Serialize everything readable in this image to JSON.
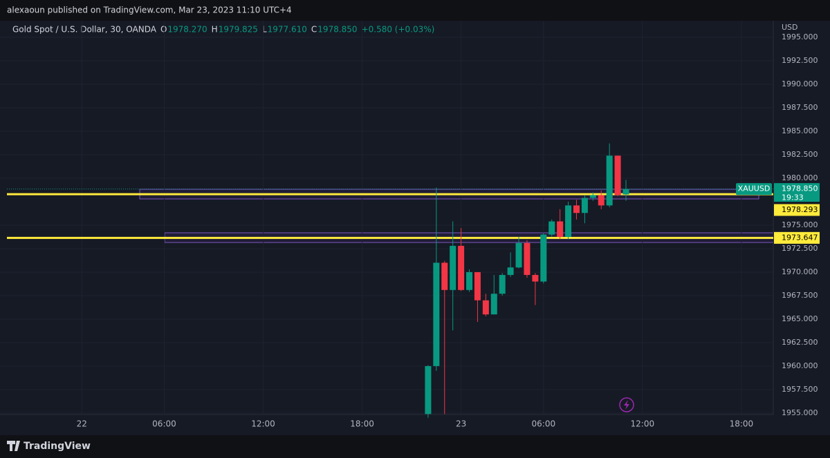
{
  "header": {
    "published": "alexaoun published on TradingView.com, Mar 23, 2023 11:10 UTC+4"
  },
  "footer": {
    "brand": "TradingView"
  },
  "chart_data": {
    "type": "candlestick",
    "title": "Gold Spot / U.S. Dollar, 30, OANDA",
    "legend_values": [
      {
        "key": "O",
        "value": "1978.270"
      },
      {
        "key": "H",
        "value": "1979.825"
      },
      {
        "key": "L",
        "value": "1977.610"
      },
      {
        "key": "C",
        "value": "1978.850"
      }
    ],
    "change": "+0.580 (+0.03%)",
    "y_unit": "USD",
    "categories": [
      null,
      null,
      null,
      null,
      null,
      null,
      null,
      null,
      null,
      "22",
      null,
      null,
      null,
      null,
      null,
      null,
      null,
      null,
      null,
      "06:00",
      null,
      null,
      null,
      null,
      null,
      null,
      null,
      null,
      null,
      null,
      null,
      "12:00",
      null,
      null,
      null,
      null,
      null,
      null,
      null,
      null,
      null,
      null,
      null,
      "18:00",
      null,
      null,
      null,
      null,
      null,
      null,
      null,
      null,
      null,
      null,
      null,
      "23",
      null,
      null,
      null,
      null,
      null,
      null,
      null,
      null,
      null,
      "06:00",
      null,
      null,
      null,
      null,
      null,
      null,
      null,
      null,
      null,
      null,
      null,
      "12:00",
      null,
      null,
      null,
      null,
      null,
      null,
      null,
      null,
      null,
      null,
      null,
      "18:00",
      null,
      null,
      null
    ],
    "open": [
      null,
      null,
      null,
      null,
      null,
      null,
      null,
      null,
      null,
      null,
      null,
      null,
      null,
      null,
      null,
      null,
      null,
      null,
      null,
      null,
      null,
      null,
      null,
      null,
      null,
      null,
      null,
      null,
      null,
      null,
      null,
      null,
      null,
      null,
      null,
      null,
      null,
      null,
      null,
      null,
      null,
      null,
      null,
      null,
      null,
      null,
      null,
      null,
      null,
      null,
      null,
      1954.9,
      1960.0,
      1971.0,
      1968.1,
      1972.8,
      1968.1,
      1970.0,
      1967.0,
      1965.5,
      1967.7,
      1969.7,
      1970.5,
      1973.1,
      1969.7,
      1969.0,
      1974.0,
      1975.4,
      1973.75,
      1977.1,
      1976.3,
      1977.9,
      1978.2,
      1977.1,
      1982.4,
      1978.27,
      null,
      null,
      null,
      null,
      null,
      null,
      null,
      null,
      null,
      null,
      null,
      null,
      null,
      null,
      null,
      null,
      null
    ],
    "high": [
      null,
      null,
      null,
      null,
      null,
      null,
      null,
      null,
      null,
      null,
      null,
      null,
      null,
      null,
      null,
      null,
      null,
      null,
      null,
      null,
      null,
      null,
      null,
      null,
      null,
      null,
      null,
      null,
      null,
      null,
      null,
      null,
      null,
      null,
      null,
      null,
      null,
      null,
      null,
      null,
      null,
      null,
      null,
      null,
      null,
      null,
      null,
      null,
      null,
      null,
      null,
      1960.1,
      1979.0,
      1971.2,
      1975.4,
      1974.7,
      1970.3,
      1970.0,
      1967.7,
      1969.7,
      1969.9,
      1972.1,
      1973.75,
      1973.4,
      1969.9,
      1974.2,
      1975.6,
      1976.7,
      1977.5,
      1977.7,
      1978.2,
      1978.5,
      1978.7,
      1983.7,
      1982.4,
      1979.825,
      null,
      null,
      null,
      null,
      null,
      null,
      null,
      null,
      null,
      null,
      null,
      null,
      null,
      null,
      null,
      null,
      null
    ],
    "low": [
      null,
      null,
      null,
      null,
      null,
      null,
      null,
      null,
      null,
      null,
      null,
      null,
      null,
      null,
      null,
      null,
      null,
      null,
      null,
      null,
      null,
      null,
      null,
      null,
      null,
      null,
      null,
      null,
      null,
      null,
      null,
      null,
      null,
      null,
      null,
      null,
      null,
      null,
      null,
      null,
      null,
      null,
      null,
      null,
      null,
      null,
      null,
      null,
      null,
      null,
      null,
      1954.5,
      1959.5,
      1954.9,
      1963.8,
      1968.0,
      1967.9,
      1964.7,
      1965.3,
      1965.5,
      1967.5,
      1969.5,
      1970.4,
      1969.4,
      1966.5,
      1968.8,
      1973.8,
      1973.5,
      1973.5,
      1975.6,
      1975.2,
      1977.6,
      1976.7,
      1976.9,
      1978.1,
      1977.61,
      null,
      null,
      null,
      null,
      null,
      null,
      null,
      null,
      null,
      null,
      null,
      null,
      null,
      null,
      null,
      null,
      null
    ],
    "close": [
      null,
      null,
      null,
      null,
      null,
      null,
      null,
      null,
      null,
      null,
      null,
      null,
      null,
      null,
      null,
      null,
      null,
      null,
      null,
      null,
      null,
      null,
      null,
      null,
      null,
      null,
      null,
      null,
      null,
      null,
      null,
      null,
      null,
      null,
      null,
      null,
      null,
      null,
      null,
      null,
      null,
      null,
      null,
      null,
      null,
      null,
      null,
      null,
      null,
      null,
      null,
      1960.0,
      1971.0,
      1968.1,
      1972.8,
      1968.1,
      1970.0,
      1967.0,
      1965.5,
      1967.7,
      1969.7,
      1970.5,
      1973.1,
      1969.7,
      1969.0,
      1974.0,
      1975.4,
      1973.75,
      1977.1,
      1976.3,
      1977.9,
      1978.2,
      1977.1,
      1982.4,
      1978.2,
      1978.85,
      null,
      null,
      null,
      null,
      null,
      null,
      null,
      null,
      null,
      null,
      null,
      null,
      null,
      null,
      null,
      null,
      null
    ],
    "up_color": "#089981",
    "down_color": "#f23645",
    "ylim": [
      1954.85,
      1996.76
    ],
    "yticks": [
      {
        "value": 1955,
        "label": "1955.000"
      },
      {
        "value": 1957.5,
        "label": "1957.500"
      },
      {
        "value": 1960,
        "label": "1960.000"
      },
      {
        "value": 1962.5,
        "label": "1962.500"
      },
      {
        "value": 1965,
        "label": "1965.000"
      },
      {
        "value": 1967.5,
        "label": "1967.500"
      },
      {
        "value": 1970,
        "label": "1970.000"
      },
      {
        "value": 1972.5,
        "label": "1972.500"
      },
      {
        "value": 1975,
        "label": "1975.000"
      },
      {
        "value": 1980,
        "label": "1980.000"
      },
      {
        "value": 1982.5,
        "label": "1982.500"
      },
      {
        "value": 1985,
        "label": "1985.000"
      },
      {
        "value": 1987.5,
        "label": "1987.500"
      },
      {
        "value": 1990,
        "label": "1990.000"
      },
      {
        "value": 1992.5,
        "label": "1992.500"
      },
      {
        "value": 1995,
        "label": "1995.000"
      }
    ],
    "grid": true,
    "levels": [
      1978.293,
      1973.647
    ],
    "level_color": "#ffeb3b",
    "last_price": {
      "symbol": "XAUUSD",
      "label": "1978.850",
      "countdown": "19:33"
    }
  }
}
